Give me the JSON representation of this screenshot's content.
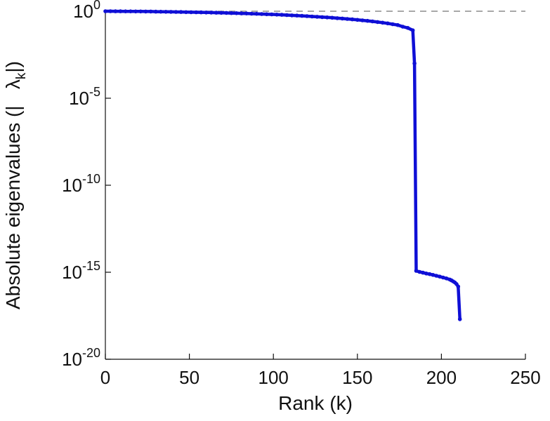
{
  "figure": {
    "background": "#ffffff",
    "xlabel": "Rank (k)",
    "ylabel_prefix": "Absolute eigenvalues (|   ",
    "ylabel_lambda": "λ",
    "ylabel_sub": "k",
    "ylabel_suffix": "|)"
  },
  "chart_data": {
    "type": "line",
    "title": "",
    "xlabel": "Rank (k)",
    "ylabel": "Absolute eigenvalues (|λ_k|)",
    "y_scale": "log",
    "xlim": [
      0,
      250
    ],
    "x_ticks": [
      0,
      50,
      100,
      150,
      200,
      250
    ],
    "ylim_exponents": [
      -20,
      0
    ],
    "y_tick_exponents": [
      0,
      -5,
      -10,
      -15,
      -20
    ],
    "grid": false,
    "legend": null,
    "reference_line": {
      "y": 1.0,
      "style": "dashed",
      "color": "#8c8c8c"
    },
    "series": [
      {
        "name": "absolute-eigenvalues",
        "color": "#0f0fd6",
        "marker": "point",
        "line_width": 4.5,
        "points": [
          [
            0,
            1.0
          ],
          [
            3,
            1.0
          ],
          [
            6,
            0.99
          ],
          [
            9,
            0.99
          ],
          [
            12,
            0.98
          ],
          [
            15,
            0.98
          ],
          [
            18,
            0.97
          ],
          [
            21,
            0.97
          ],
          [
            24,
            0.96
          ],
          [
            27,
            0.96
          ],
          [
            30,
            0.95
          ],
          [
            33,
            0.94
          ],
          [
            36,
            0.93
          ],
          [
            39,
            0.92
          ],
          [
            42,
            0.91
          ],
          [
            45,
            0.9
          ],
          [
            48,
            0.89
          ],
          [
            51,
            0.88
          ],
          [
            54,
            0.87
          ],
          [
            57,
            0.86
          ],
          [
            60,
            0.85
          ],
          [
            63,
            0.84
          ],
          [
            66,
            0.82
          ],
          [
            69,
            0.81
          ],
          [
            72,
            0.8
          ],
          [
            75,
            0.78
          ],
          [
            78,
            0.77
          ],
          [
            81,
            0.75
          ],
          [
            84,
            0.74
          ],
          [
            87,
            0.72
          ],
          [
            90,
            0.71
          ],
          [
            93,
            0.69
          ],
          [
            96,
            0.67
          ],
          [
            99,
            0.66
          ],
          [
            102,
            0.64
          ],
          [
            105,
            0.62
          ],
          [
            108,
            0.6
          ],
          [
            111,
            0.58
          ],
          [
            114,
            0.56
          ],
          [
            117,
            0.54
          ],
          [
            120,
            0.52
          ],
          [
            123,
            0.5
          ],
          [
            126,
            0.48
          ],
          [
            129,
            0.46
          ],
          [
            132,
            0.44
          ],
          [
            135,
            0.42
          ],
          [
            138,
            0.4
          ],
          [
            141,
            0.38
          ],
          [
            144,
            0.36
          ],
          [
            147,
            0.34
          ],
          [
            150,
            0.32
          ],
          [
            153,
            0.3
          ],
          [
            156,
            0.28
          ],
          [
            159,
            0.26
          ],
          [
            162,
            0.24
          ],
          [
            165,
            0.22
          ],
          [
            168,
            0.2
          ],
          [
            171,
            0.18
          ],
          [
            174,
            0.16
          ],
          [
            177,
            0.13
          ],
          [
            180,
            0.11
          ],
          [
            183,
            0.08
          ],
          [
            184,
            0.001
          ],
          [
            185,
            1.2e-15
          ],
          [
            187,
            1.05e-15
          ],
          [
            189,
            9.5e-16
          ],
          [
            191,
            8.5e-16
          ],
          [
            193,
            7.8e-16
          ],
          [
            195,
            7e-16
          ],
          [
            197,
            6.3e-16
          ],
          [
            199,
            5.6e-16
          ],
          [
            201,
            5e-16
          ],
          [
            203,
            4.4e-16
          ],
          [
            205,
            3.8e-16
          ],
          [
            206,
            3.4e-16
          ],
          [
            207,
            3e-16
          ],
          [
            208,
            2.6e-16
          ],
          [
            209,
            2.1e-16
          ],
          [
            210,
            1.5e-16
          ],
          [
            211,
            2e-18
          ]
        ]
      }
    ]
  }
}
